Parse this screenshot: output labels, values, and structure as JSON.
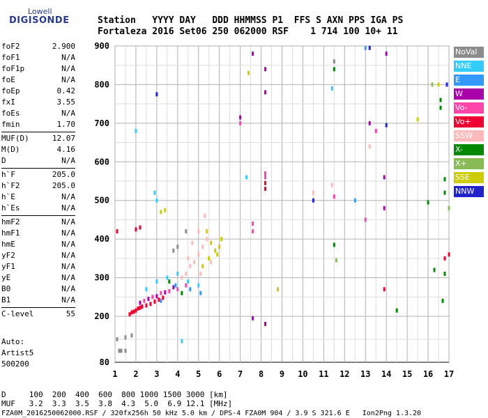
{
  "logo": {
    "line1": "Lowell",
    "line2": "DIGISONDE"
  },
  "header": {
    "row1": "Station   YYYY DAY   DDD HHMMSS P1  FFS S AXN PPS IGA PS",
    "row2": "Fortaleza 2016 Set06 250 062000 RSF    1 714 100 10+ 11"
  },
  "params": [
    {
      "name": "foF2",
      "value": "2.900"
    },
    {
      "name": "foF1",
      "value": "N/A"
    },
    {
      "name": "foF1p",
      "value": "N/A"
    },
    {
      "name": "foE",
      "value": "N/A"
    },
    {
      "name": "foEp",
      "value": "0.42"
    },
    {
      "name": "fxI",
      "value": "3.55"
    },
    {
      "name": "foEs",
      "value": "N/A"
    },
    {
      "name": "fmin",
      "value": "1.70"
    },
    {
      "name": "MUF(D)",
      "value": "12.07"
    },
    {
      "name": "M(D)",
      "value": "4.16"
    },
    {
      "name": "D",
      "value": "N/A"
    },
    {
      "name": "h`F",
      "value": "205.0"
    },
    {
      "name": "h`F2",
      "value": "205.0"
    },
    {
      "name": "h`E",
      "value": "N/A"
    },
    {
      "name": "h`Es",
      "value": "N/A"
    },
    {
      "name": "hmF2",
      "value": "N/A"
    },
    {
      "name": "hmF1",
      "value": "N/A"
    },
    {
      "name": "hmE",
      "value": "N/A"
    },
    {
      "name": "yF2",
      "value": "N/A"
    },
    {
      "name": "yF1",
      "value": "N/A"
    },
    {
      "name": "yE",
      "value": "N/A"
    },
    {
      "name": "B0",
      "value": "N/A"
    },
    {
      "name": "B1",
      "value": "N/A"
    },
    {
      "name": "C-level",
      "value": "55"
    }
  ],
  "autoscale": {
    "line1": "Auto:",
    "line2": "Artist5",
    "line3": "500200"
  },
  "legend": [
    {
      "label": "NoVal",
      "color": "#8c8c8c"
    },
    {
      "label": "NNE",
      "color": "#33ccff"
    },
    {
      "label": "E",
      "color": "#3399ff"
    },
    {
      "label": "W",
      "color": "#aa00aa"
    },
    {
      "label": "Vo-",
      "color": "#ff44aa"
    },
    {
      "label": "Vo+",
      "color": "#ee0033"
    },
    {
      "label": "SSW",
      "color": "#ffbbbb"
    },
    {
      "label": "X-",
      "color": "#008800"
    },
    {
      "label": "X+",
      "color": "#88bb55"
    },
    {
      "label": "SSE",
      "color": "#cccc00"
    },
    {
      "label": "NNW",
      "color": "#2222cc"
    }
  ],
  "footer": {
    "line1": "D     100  200  400  600  800 1000 1500 3000 [km]",
    "line2": "MUF   3.2  3.3  3.5  3.8  4.3  5.0  6.9 12.1 [MHz]",
    "line3": "FZA0M_2016250062000.RSF / 320fx256h 50 kHz 5.0 km / DPS-4 FZA0M 904 / 3.9 S 321.6 E   Ion2Png 1.3.20"
  },
  "chart_data": {
    "type": "scatter",
    "x_ticks": [
      1,
      2,
      3,
      4,
      5,
      6,
      7,
      8,
      9,
      10,
      11,
      12,
      13,
      14,
      15,
      16,
      17
    ],
    "y_ticks": [
      80,
      200,
      300,
      400,
      500,
      600,
      700,
      800,
      900
    ],
    "xlim": [
      1,
      17
    ],
    "ylim": [
      80,
      900
    ],
    "grid": true,
    "series": [
      {
        "color": "#ee0033",
        "points": [
          [
            1.7,
            205
          ],
          [
            1.8,
            210
          ],
          [
            1.9,
            212
          ],
          [
            2.0,
            215
          ],
          [
            2.1,
            220
          ],
          [
            2.2,
            222
          ],
          [
            2.3,
            225
          ],
          [
            2.5,
            228
          ],
          [
            2.7,
            232
          ],
          [
            2.9,
            238
          ],
          [
            3.1,
            243
          ],
          [
            3.3,
            248
          ],
          [
            1.1,
            420
          ],
          [
            2.0,
            425
          ],
          [
            2.2,
            430
          ],
          [
            8.2,
            530
          ],
          [
            8.2,
            545
          ],
          [
            13.9,
            270
          ],
          [
            16.8,
            350
          ],
          [
            17.0,
            360
          ]
        ]
      },
      {
        "color": "#ff44aa",
        "points": [
          [
            2.4,
            240
          ],
          [
            2.8,
            250
          ],
          [
            3.2,
            260
          ],
          [
            3.6,
            265
          ],
          [
            4.0,
            270
          ],
          [
            4.4,
            280
          ],
          [
            8.2,
            560
          ],
          [
            8.2,
            570
          ],
          [
            7.6,
            420
          ],
          [
            7.6,
            440
          ],
          [
            7.0,
            700
          ],
          [
            11.5,
            510
          ],
          [
            13.0,
            450
          ],
          [
            13.5,
            680
          ]
        ]
      },
      {
        "color": "#aa00aa",
        "points": [
          [
            2.2,
            235
          ],
          [
            2.6,
            245
          ],
          [
            3.0,
            252
          ],
          [
            3.4,
            262
          ],
          [
            3.8,
            275
          ],
          [
            7.0,
            715
          ],
          [
            7.6,
            880
          ],
          [
            8.2,
            840
          ],
          [
            8.2,
            780
          ],
          [
            13.2,
            700
          ],
          [
            13.9,
            560
          ],
          [
            13.9,
            480
          ],
          [
            14.0,
            880
          ],
          [
            8.2,
            180
          ],
          [
            7.6,
            195
          ]
        ]
      },
      {
        "color": "#ffbbbb",
        "points": [
          [
            4.2,
            300
          ],
          [
            4.4,
            310
          ],
          [
            4.6,
            330
          ],
          [
            4.8,
            340
          ],
          [
            5.0,
            360
          ],
          [
            5.2,
            380
          ],
          [
            5.4,
            400
          ],
          [
            5.0,
            420
          ],
          [
            5.3,
            460
          ],
          [
            5.6,
            340
          ],
          [
            4.7,
            390
          ],
          [
            5.1,
            310
          ],
          [
            4.5,
            350
          ],
          [
            10.5,
            520
          ],
          [
            11.4,
            540
          ],
          [
            13.2,
            640
          ]
        ]
      },
      {
        "color": "#cccc00",
        "points": [
          [
            5.2,
            330
          ],
          [
            5.5,
            350
          ],
          [
            5.8,
            370
          ],
          [
            6.0,
            380
          ],
          [
            5.6,
            390
          ],
          [
            5.9,
            360
          ],
          [
            6.1,
            400
          ],
          [
            5.4,
            420
          ],
          [
            3.2,
            470
          ],
          [
            3.4,
            475
          ],
          [
            7.4,
            830
          ],
          [
            8.8,
            270
          ],
          [
            15.5,
            710
          ],
          [
            16.5,
            800
          ]
        ]
      },
      {
        "color": "#33ccff",
        "points": [
          [
            2.5,
            270
          ],
          [
            3.0,
            290
          ],
          [
            3.5,
            300
          ],
          [
            4.0,
            310
          ],
          [
            4.5,
            290
          ],
          [
            5.0,
            280
          ],
          [
            2.0,
            680
          ],
          [
            2.9,
            520
          ],
          [
            3.0,
            500
          ],
          [
            7.3,
            560
          ],
          [
            11.4,
            790
          ],
          [
            4.2,
            135
          ]
        ]
      },
      {
        "color": "#3399ff",
        "points": [
          [
            3.2,
            240
          ],
          [
            3.9,
            280
          ],
          [
            4.6,
            270
          ],
          [
            5.1,
            260
          ],
          [
            12.5,
            500
          ],
          [
            13.0,
            895
          ]
        ]
      },
      {
        "color": "#008800",
        "points": [
          [
            3.6,
            290
          ],
          [
            4.2,
            260
          ],
          [
            16.6,
            740
          ],
          [
            16.6,
            760
          ],
          [
            16.8,
            555
          ],
          [
            16.8,
            520
          ],
          [
            16.0,
            495
          ],
          [
            16.3,
            320
          ],
          [
            16.8,
            310
          ],
          [
            16.7,
            240
          ],
          [
            11.5,
            840
          ],
          [
            11.5,
            385
          ],
          [
            14.5,
            215
          ]
        ]
      },
      {
        "color": "#88bb55",
        "points": [
          [
            11.6,
            345
          ],
          [
            16.2,
            800
          ],
          [
            17.0,
            480
          ]
        ]
      },
      {
        "color": "#8c8c8c",
        "points": [
          [
            1.2,
            110
          ],
          [
            1.3,
            110
          ],
          [
            1.5,
            110
          ],
          [
            1.1,
            140
          ],
          [
            1.5,
            145
          ],
          [
            1.8,
            150
          ],
          [
            3.8,
            370
          ],
          [
            4.0,
            380
          ],
          [
            4.4,
            420
          ],
          [
            11.5,
            860
          ]
        ]
      },
      {
        "color": "#2222cc",
        "points": [
          [
            3.0,
            775
          ],
          [
            10.5,
            500
          ],
          [
            13.2,
            895
          ],
          [
            14.0,
            695
          ],
          [
            16.9,
            800
          ]
        ]
      }
    ]
  }
}
